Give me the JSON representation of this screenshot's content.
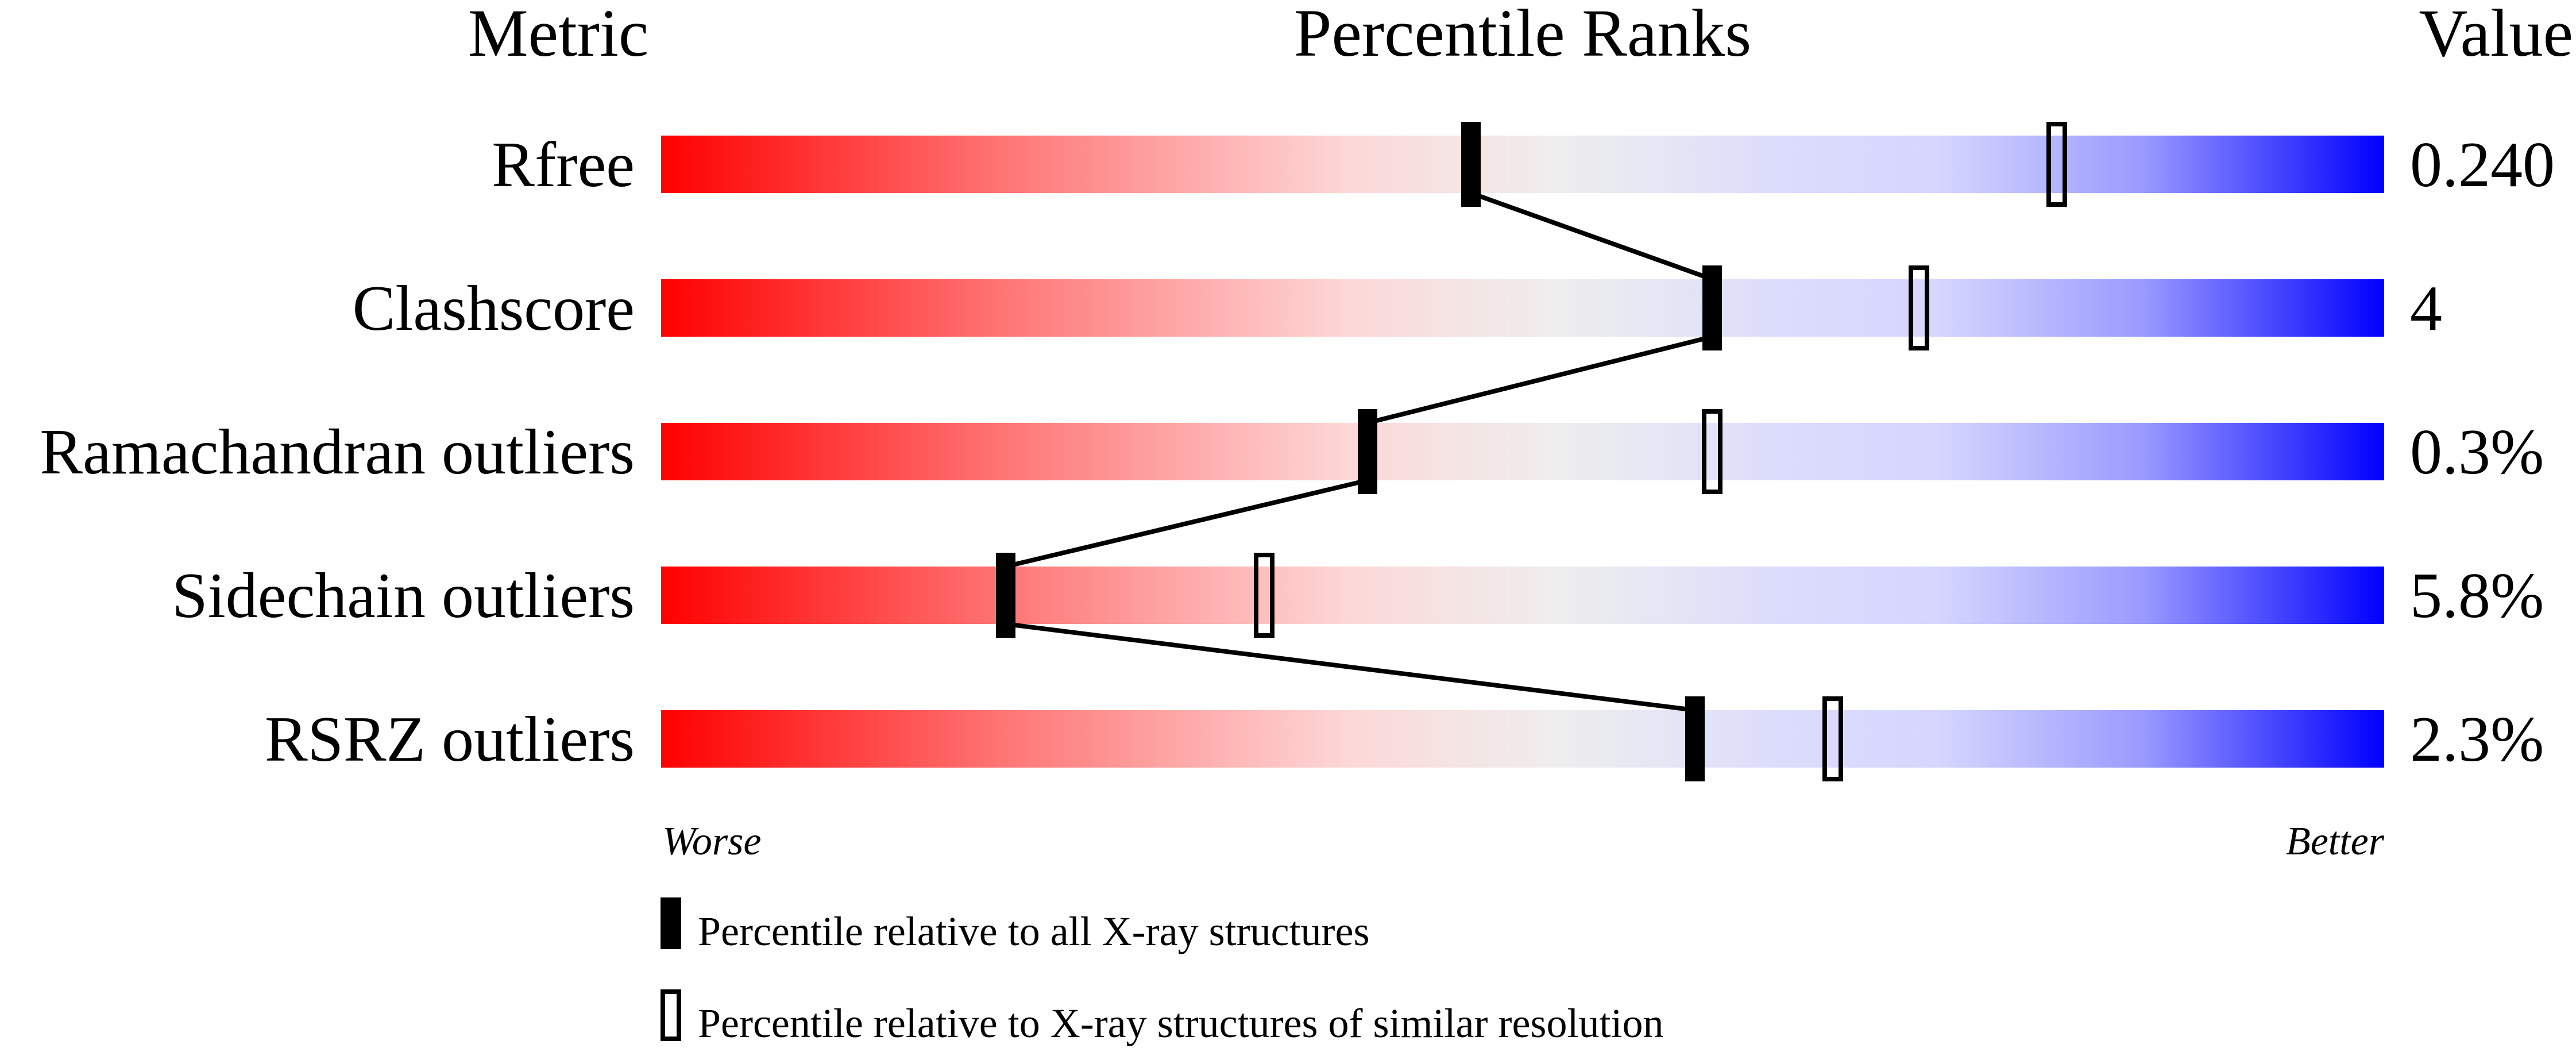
{
  "chart_data": {
    "type": "bar",
    "headers": {
      "metric": "Metric",
      "percentile": "Percentile Ranks",
      "value": "Value"
    },
    "categories": [
      "Rfree",
      "Clashscore",
      "Ramachandran outliers",
      "Sidechain outliers",
      "RSRZ outliers"
    ],
    "values": [
      "0.240",
      "4",
      "0.3%",
      "5.8%",
      "2.3%"
    ],
    "series": [
      {
        "name": "Percentile relative to all X-ray structures",
        "marker": "filled",
        "values": [
          47,
          61,
          41,
          20,
          60
        ]
      },
      {
        "name": "Percentile relative to X-ray structures of similar resolution",
        "marker": "open",
        "values": [
          81,
          73,
          61,
          35,
          68
        ]
      }
    ],
    "xlim": [
      0,
      100
    ],
    "scale_labels": {
      "left": "Worse",
      "right": "Better"
    },
    "colors": {
      "worse": "#ff0000",
      "middle": "#eeeeee",
      "better": "#0000ff",
      "marker": "#000000"
    }
  }
}
